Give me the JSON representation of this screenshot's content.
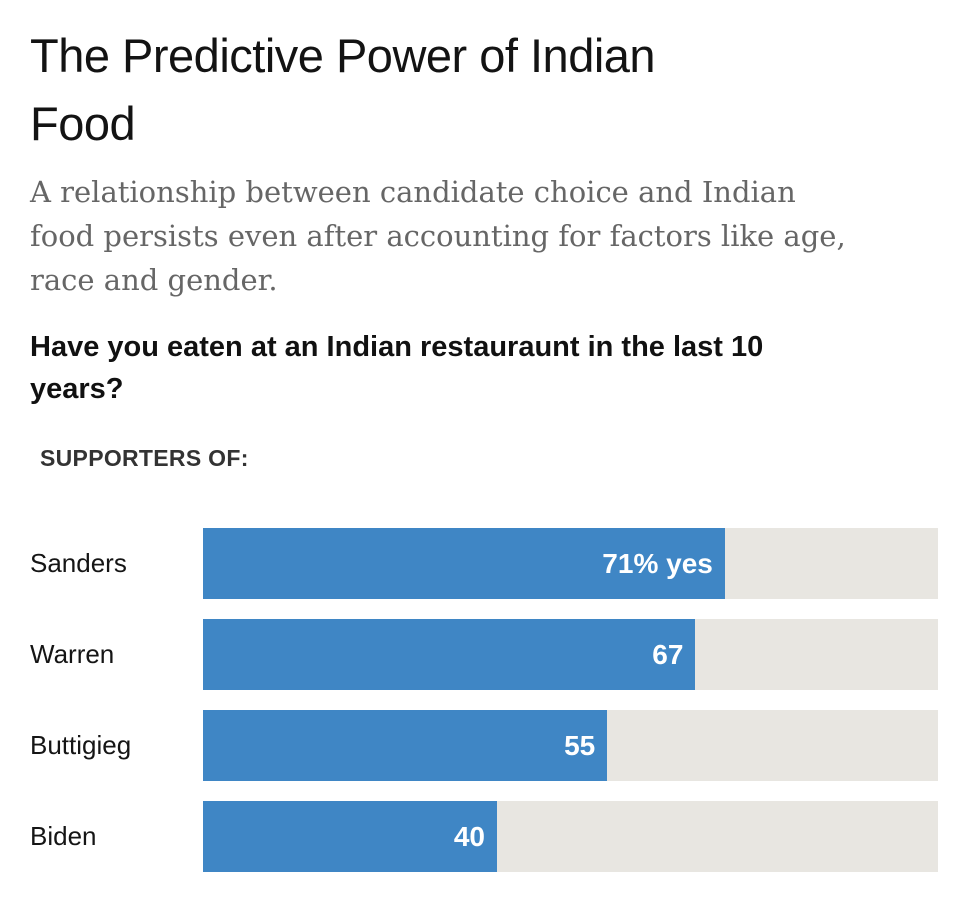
{
  "header": {
    "title_lines": [
      "The Predictive Power of Indian",
      "Food"
    ],
    "subtitle_lines": [
      "A relationship between candidate choice and Indian",
      "food persists even after accounting for factors like age,",
      "race and gender."
    ],
    "question_lines": [
      "Have you eaten at an Indian restauraunt in the last 10",
      "years?"
    ]
  },
  "chart": {
    "group_label": "SUPPORTERS OF:",
    "colors": {
      "bar_fill": "#3f86c5",
      "bar_track": "#e8e6e1",
      "value_text": "#ffffff"
    },
    "rows": [
      {
        "label": "Sanders",
        "value": 71,
        "value_label": "71% yes"
      },
      {
        "label": "Warren",
        "value": 67,
        "value_label": "67"
      },
      {
        "label": "Buttigieg",
        "value": 55,
        "value_label": "55"
      },
      {
        "label": "Biden",
        "value": 40,
        "value_label": "40"
      }
    ]
  },
  "chart_data": {
    "type": "bar",
    "orientation": "horizontal",
    "title": "The Predictive Power of Indian Food",
    "subtitle": "A relationship between candidate choice and Indian food persists even after accounting for factors like age, race and gender.",
    "question": "Have you eaten at an Indian restauraunt in the last 10 years?",
    "group_label": "SUPPORTERS OF:",
    "categories": [
      "Sanders",
      "Warren",
      "Buttigieg",
      "Biden"
    ],
    "values": [
      71,
      67,
      55,
      40
    ],
    "value_labels": [
      "71% yes",
      "67",
      "55",
      "40"
    ],
    "unit": "% yes",
    "xlim": [
      0,
      100
    ],
    "grid": false,
    "legend": "none",
    "bar_color": "#3f86c5",
    "track_color": "#e8e6e1"
  }
}
